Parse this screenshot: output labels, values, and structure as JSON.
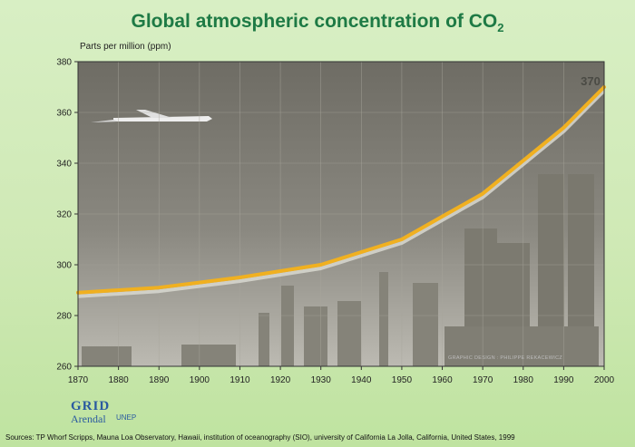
{
  "title_main": "Global atmospheric concentration of CO",
  "title_sub": "2",
  "ylabel": "Parts per million (ppm)",
  "end_label": "370",
  "credit": "GRAPHIC DESIGN : PHILIPPE REKACEWICZ",
  "logo": {
    "grid": "GRID",
    "arendal": "Arendal",
    "unep": "UNEP"
  },
  "sources": "Sources: TP Whorf  Scripps, Mauna Loa Observatory, Hawaii, institution of oceanography (SIO), university of California La Jolla, California, United States, 1999",
  "colors": {
    "line": "#f0b020",
    "shadow": "#d8d8d0",
    "title": "#1e7a45"
  },
  "chart_data": {
    "type": "line",
    "title": "Global atmospheric concentration of CO2",
    "ylabel": "Parts per million (ppm)",
    "xlabel": "",
    "x": [
      1870,
      1880,
      1890,
      1900,
      1910,
      1920,
      1930,
      1940,
      1950,
      1960,
      1970,
      1980,
      1990,
      2000
    ],
    "xticks": [
      "1870",
      "1880",
      "1890",
      "1900",
      "1910",
      "1920",
      "1930",
      "1940",
      "1950",
      "1960",
      "1970",
      "1980",
      "1990",
      "2000"
    ],
    "yticks": [
      "260",
      "280",
      "300",
      "320",
      "340",
      "360",
      "380"
    ],
    "xlim": [
      1870,
      2000
    ],
    "ylim": [
      260,
      380
    ],
    "grid": true,
    "series": [
      {
        "x": [
          1870,
          1890,
          1910,
          1930,
          1950,
          1960,
          1970,
          1980,
          1990,
          2000
        ],
        "values": [
          289,
          291,
          295,
          300,
          310,
          319,
          328,
          341,
          354,
          370
        ]
      }
    ]
  }
}
